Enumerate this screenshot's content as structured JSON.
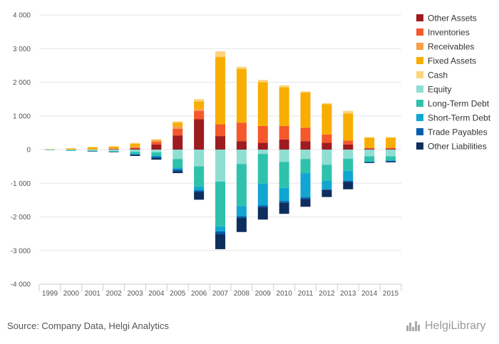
{
  "source": "Source: Company Data, Helgi Analytics",
  "logo": {
    "name": "HelgiLibrary",
    "icon": "city-skyline-icon"
  },
  "chart_data": {
    "type": "bar",
    "stacked": true,
    "categories": [
      "1999",
      "2000",
      "2001",
      "2002",
      "2003",
      "2004",
      "2005",
      "2006",
      "2007",
      "2008",
      "2009",
      "2010",
      "2011",
      "2012",
      "2013",
      "2014",
      "2015"
    ],
    "ylim": [
      -4000,
      4000
    ],
    "yticks": [
      4000,
      3000,
      2000,
      1000,
      0,
      -1000,
      -2000,
      -3000,
      -4000
    ],
    "ytick_labels": [
      "4 000",
      "3 000",
      "2 000",
      "1 000",
      "0",
      "-1 000",
      "-2 000",
      "-3 000",
      "-4 000"
    ],
    "grid": true,
    "legend_position": "right",
    "series": [
      {
        "name": "Other Assets",
        "color": "#9e1b20",
        "values": [
          0,
          0,
          0,
          10,
          30,
          150,
          420,
          900,
          400,
          250,
          200,
          300,
          250,
          200,
          150,
          20,
          20
        ]
      },
      {
        "name": "Inventories",
        "color": "#f5582a",
        "values": [
          0,
          0,
          0,
          10,
          30,
          80,
          200,
          250,
          350,
          550,
          500,
          400,
          400,
          250,
          120,
          30,
          30
        ]
      },
      {
        "name": "Receivables",
        "color": "#f89f4a",
        "values": [
          0,
          0,
          10,
          20,
          30,
          50,
          80,
          60,
          0,
          0,
          0,
          0,
          0,
          0,
          0,
          0,
          0
        ]
      },
      {
        "name": "Fixed Assets",
        "color": "#f7ae00",
        "values": [
          10,
          30,
          60,
          50,
          80,
          10,
          100,
          220,
          2000,
          1600,
          1300,
          1150,
          1050,
          900,
          800,
          300,
          300
        ]
      },
      {
        "name": "Cash",
        "color": "#fdd47d",
        "values": [
          5,
          10,
          10,
          10,
          30,
          20,
          40,
          70,
          170,
          60,
          70,
          60,
          30,
          30,
          80,
          20,
          20
        ]
      },
      {
        "name": "Equity",
        "color": "#8fded2",
        "values": [
          -10,
          -20,
          -30,
          -40,
          -60,
          -80,
          -280,
          -500,
          -950,
          -430,
          -130,
          -370,
          -280,
          -450,
          -270,
          -200,
          -200
        ]
      },
      {
        "name": "Long-Term Debt",
        "color": "#2ec2ad",
        "values": [
          -10,
          -10,
          -10,
          -20,
          -60,
          -100,
          -260,
          -610,
          -1330,
          -1250,
          -880,
          -770,
          -420,
          -480,
          -360,
          -150,
          -120
        ]
      },
      {
        "name": "Short-Term Debt",
        "color": "#11a6d1",
        "values": [
          0,
          -5,
          -10,
          -10,
          -20,
          -30,
          -50,
          -100,
          -150,
          -300,
          -650,
          -390,
          -720,
          -250,
          -300,
          -20,
          -20
        ]
      },
      {
        "name": "Trade Payables",
        "color": "#005eab",
        "values": [
          0,
          0,
          0,
          0,
          -20,
          -40,
          -50,
          -50,
          -80,
          -50,
          -50,
          -50,
          -50,
          -20,
          -30,
          -10,
          -10
        ]
      },
      {
        "name": "Other Liabilities",
        "color": "#0e2e5e",
        "values": [
          0,
          0,
          -10,
          -10,
          -30,
          -50,
          -60,
          -230,
          -450,
          -420,
          -370,
          -330,
          -230,
          -210,
          -220,
          -20,
          -30
        ]
      }
    ]
  }
}
